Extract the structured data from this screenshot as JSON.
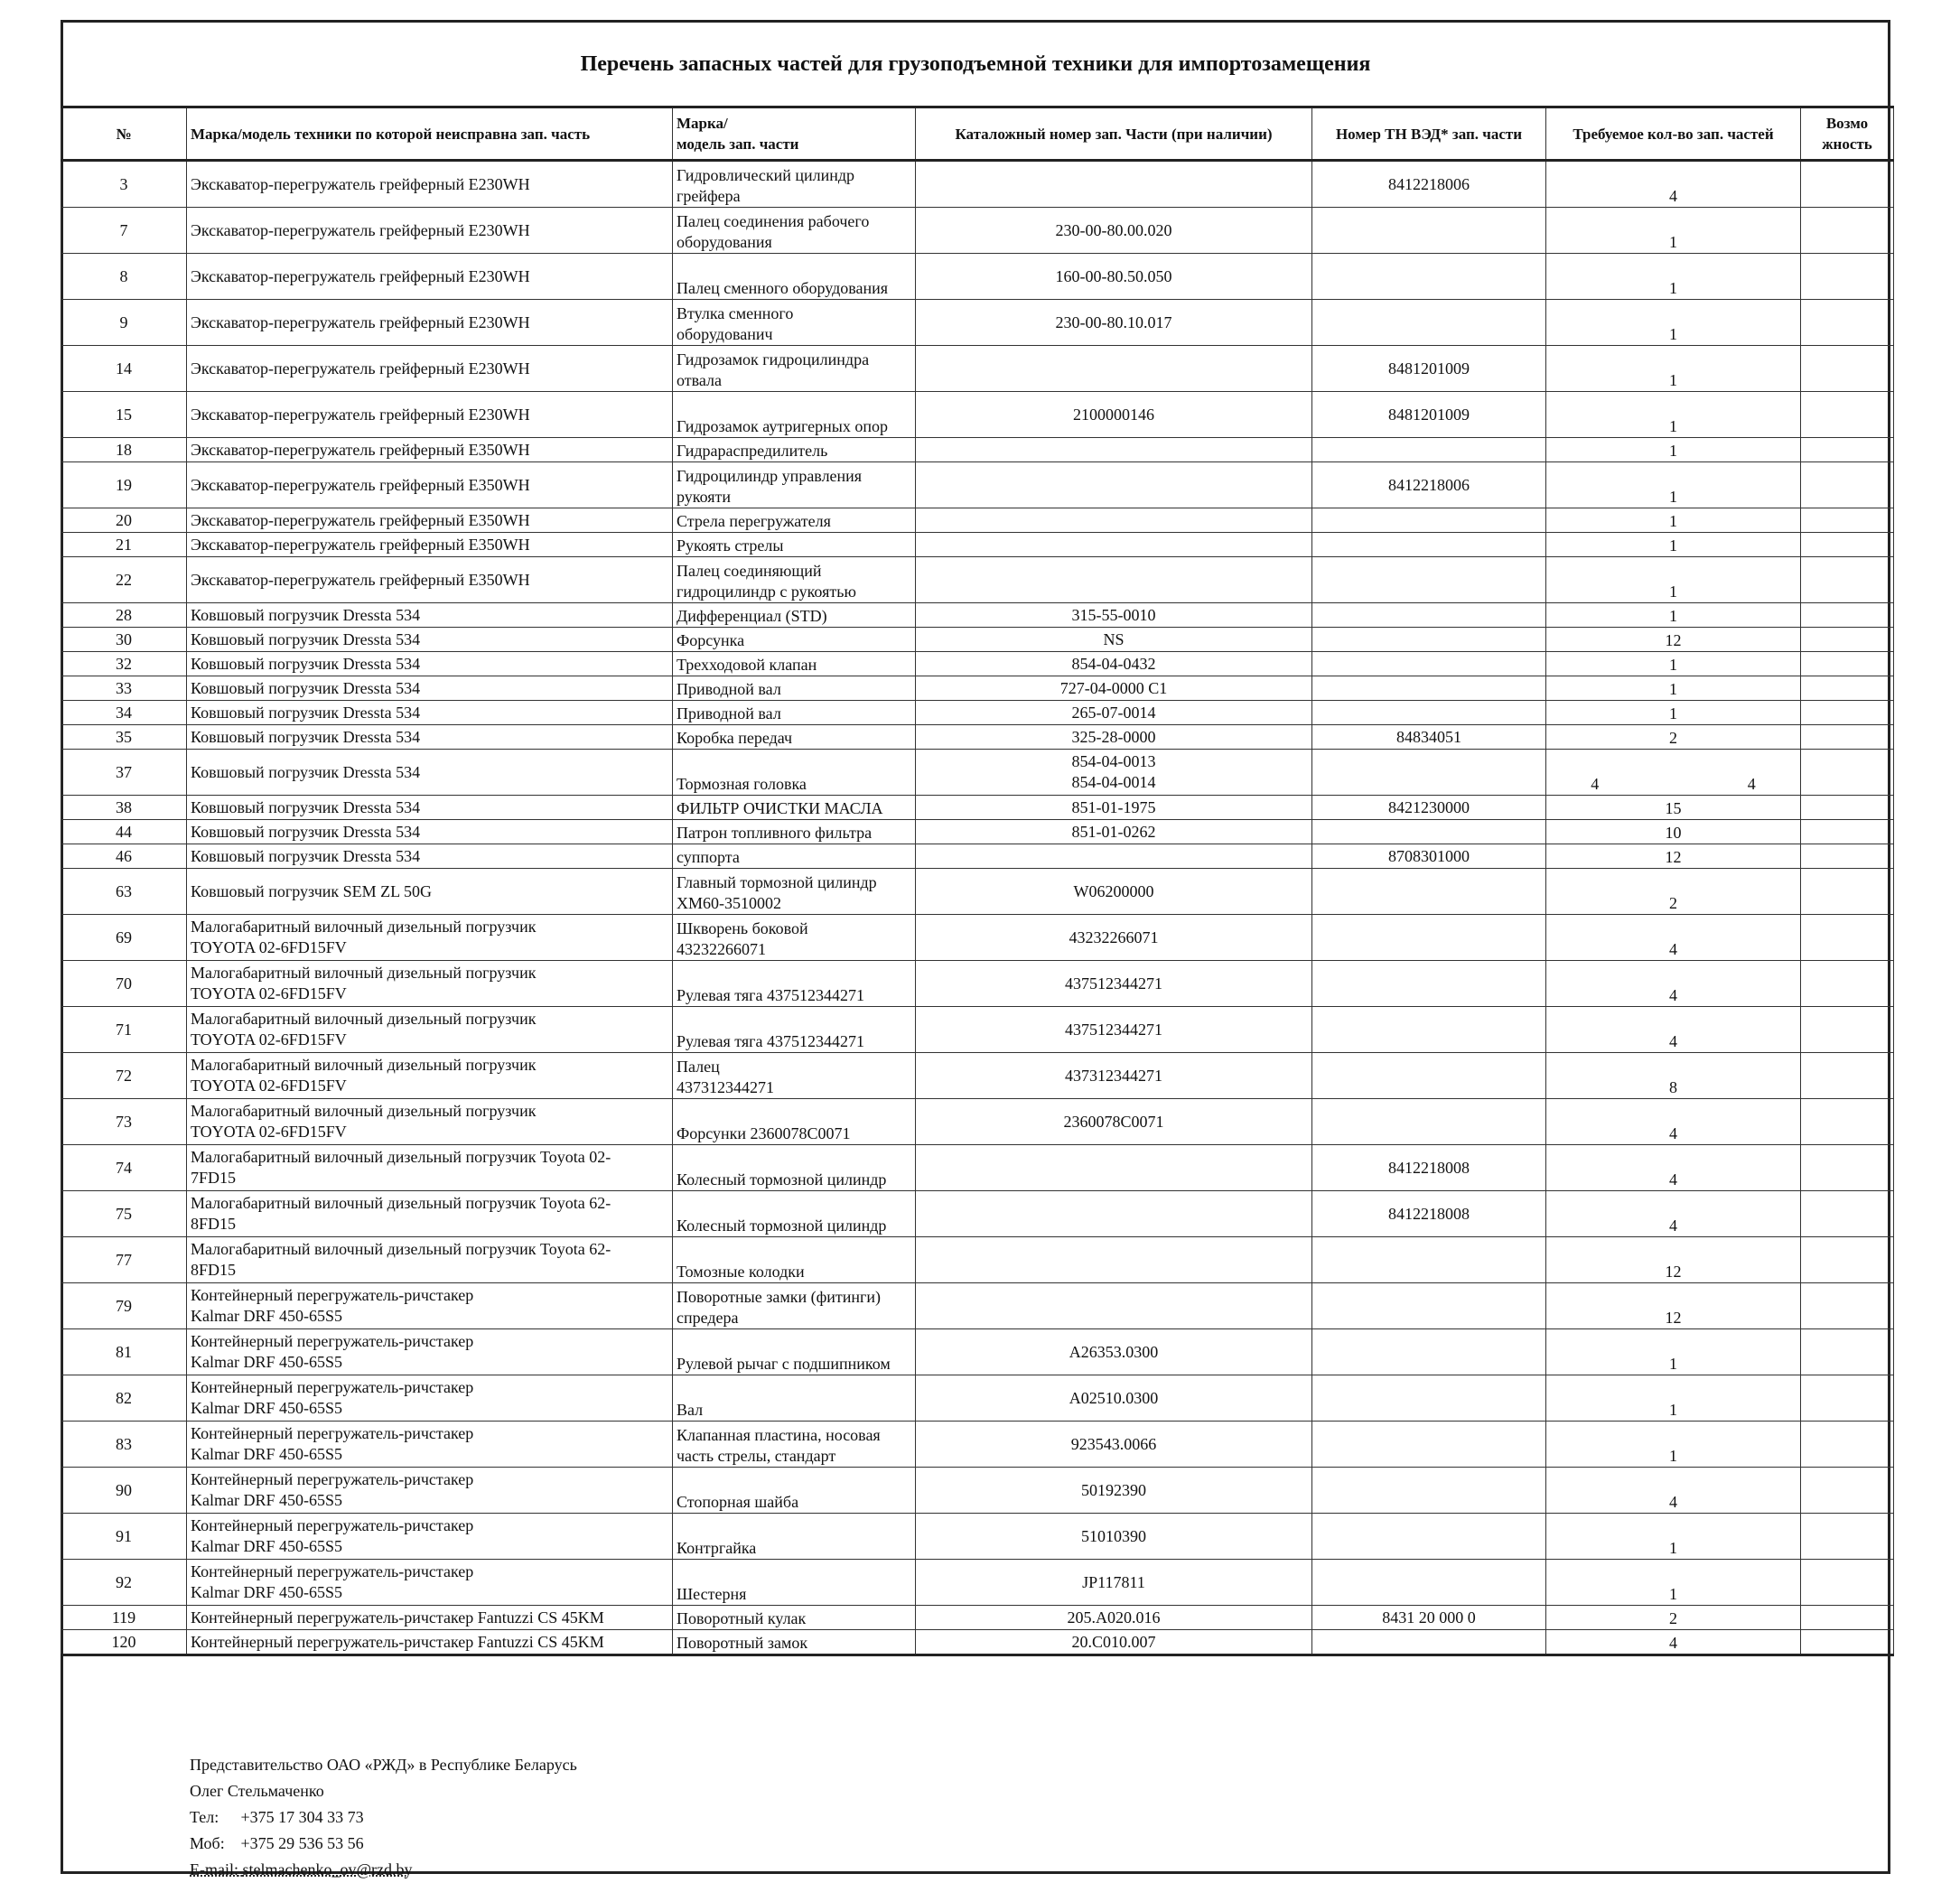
{
  "title": "Перечень запасных частей для грузоподъемной техники для импортозамещения",
  "columns": [
    "№",
    "Марка/модель техники по которой неисправна зап. часть",
    "Марка/\nмодель зап. части",
    "Каталожный номер зап. Части (при наличии)",
    "Номер ТН ВЭД* зап. части",
    "Требуемое кол-во зап. частей",
    "Возмо\nжность"
  ],
  "rows": [
    {
      "n": "3",
      "model": "Экскаватор-перегружатель грейферный E230WH",
      "part": "Гидровлический цилиндр\nгрейфера",
      "cat": "",
      "tn": "8412218006",
      "qty": "4"
    },
    {
      "n": "7",
      "model": "Экскаватор-перегружатель грейферный E230WH",
      "part": "Палец соединения рабочего\nоборудования",
      "cat": "230-00-80.00.020",
      "tn": "",
      "qty": "1"
    },
    {
      "n": "8",
      "model": "Экскаватор-перегружатель грейферный E230WH",
      "part": "Палец сменного оборудования",
      "cat": "160-00-80.50.050",
      "tn": "",
      "qty": "1"
    },
    {
      "n": "9",
      "model": "Экскаватор-перегружатель грейферный E230WH",
      "part": "Втулка сменного\nоборудованич",
      "cat": "230-00-80.10.017",
      "tn": "",
      "qty": "1"
    },
    {
      "n": "14",
      "model": "Экскаватор-перегружатель грейферный E230WH",
      "part": "Гидрозамок гидроцилиндра\nотвала",
      "cat": "",
      "tn": "8481201009",
      "qty": "1"
    },
    {
      "n": "15",
      "model": "Экскаватор-перегружатель грейферный E230WH",
      "part": "Гидрозамок аутригерных опор",
      "cat": "2100000146",
      "tn": "8481201009",
      "qty": "1"
    },
    {
      "n": "18",
      "model": "Экскаватор-перегружатель грейферный E350WH",
      "part": "Гидрараспредилитель",
      "cat": "",
      "tn": "",
      "qty": "1"
    },
    {
      "n": "19",
      "model": "Экскаватор-перегружатель грейферный E350WH",
      "part": "Гидроцилиндр управления\nрукояти",
      "cat": "",
      "tn": "8412218006",
      "qty": "1"
    },
    {
      "n": "20",
      "model": "Экскаватор-перегружатель грейферный E350WH",
      "part": "Стрела перегружателя",
      "cat": "",
      "tn": "",
      "qty": "1"
    },
    {
      "n": "21",
      "model": "Экскаватор-перегружатель грейферный E350WH",
      "part": "Рукоять стрелы",
      "cat": "",
      "tn": "",
      "qty": "1"
    },
    {
      "n": "22",
      "model": "Экскаватор-перегружатель грейферный E350WH",
      "part": "Палец соединяющий\nгидроцилиндр с рукоятью",
      "cat": "",
      "tn": "",
      "qty": "1"
    },
    {
      "n": "28",
      "model": "Ковшовый погрузчик Dressta 534",
      "part": "Дифференциал (STD)",
      "cat": "315-55-0010",
      "tn": "",
      "qty": "1"
    },
    {
      "n": "30",
      "model": "Ковшовый погрузчик Dressta 534",
      "part": " Форсунка",
      "cat": "NS",
      "tn": "",
      "qty": "12"
    },
    {
      "n": "32",
      "model": "Ковшовый погрузчик Dressta 534",
      "part": "Трехходовой клапан",
      "cat": "854-04-0432",
      "tn": "",
      "qty": "1"
    },
    {
      "n": "33",
      "model": "Ковшовый погрузчик Dressta 534",
      "part": "Приводной вал",
      "cat": "727-04-0000 C1",
      "tn": "",
      "qty": "1"
    },
    {
      "n": "34",
      "model": "Ковшовый погрузчик Dressta 534",
      "part": "Приводной вал",
      "cat": "265-07-0014",
      "tn": "",
      "qty": "1"
    },
    {
      "n": "35",
      "model": "Ковшовый погрузчик Dressta 534",
      "part": "Коробка передач",
      "cat": "325-28-0000",
      "tn": "84834051",
      "qty": "2"
    },
    {
      "n": "37",
      "model": "Ковшовый погрузчик Dressta 534",
      "part": "Тормозная головка",
      "cat": "854-04-0013\n854-04-0014",
      "tn": "",
      "qty": "4 4"
    },
    {
      "n": "38",
      "model": "Ковшовый погрузчик Dressta 534",
      "part": "ФИЛЬТР ОЧИСТКИ МАСЛА",
      "cat": "851-01-1975",
      "tn": "8421230000",
      "qty": "15"
    },
    {
      "n": "44",
      "model": "Ковшовый погрузчик Dressta 534",
      "part": "Патрон топливного фильтра",
      "cat": "851-01-0262",
      "tn": "",
      "qty": "10"
    },
    {
      "n": "46",
      "model": "Ковшовый погрузчик Dressta 534",
      "part": "суппорта",
      "cat": "",
      "tn": "8708301000",
      "qty": "12"
    },
    {
      "n": "63",
      "model": "Ковшовый погрузчик SEM ZL 50G",
      "part": "Главный тормозной цилиндр\nXM60-3510002",
      "cat": "W06200000",
      "tn": "",
      "qty": "2"
    },
    {
      "n": "69",
      "model": "Малогабаритный вилочный дизельный погрузчик\nTOYOTA 02-6FD15FV",
      "part": "Шкворень боковой\n43232266071",
      "cat": "43232266071",
      "tn": "",
      "qty": "4"
    },
    {
      "n": "70",
      "model": "Малогабаритный вилочный дизельный погрузчик\nTOYOTA 02-6FD15FV",
      "part": "Рулевая тяга 437512344271",
      "cat": "437512344271",
      "tn": "",
      "qty": "4"
    },
    {
      "n": "71",
      "model": "Малогабаритный вилочный дизельный погрузчик\nTOYOTA 02-6FD15FV",
      "part": "Рулевая тяга 437512344271",
      "cat": "437512344271",
      "tn": "",
      "qty": "4"
    },
    {
      "n": "72",
      "model": "Малогабаритный вилочный дизельный погрузчик\nTOYOTA 02-6FD15FV",
      "part": "Палец\n437312344271",
      "cat": "437312344271",
      "tn": "",
      "qty": "8"
    },
    {
      "n": "73",
      "model": "Малогабаритный вилочный дизельный погрузчик\nTOYOTA 02-6FD15FV",
      "part": "Форсунки 2360078C0071",
      "cat": "2360078C0071",
      "tn": "",
      "qty": "4"
    },
    {
      "n": "74",
      "model": "Малогабаритный вилочный дизельный погрузчик Toyota 02-\n7FD15",
      "part": "Колесный тормозной цилиндр",
      "cat": "",
      "tn": "8412218008",
      "qty": "4"
    },
    {
      "n": "75",
      "model": "Малогабаритный вилочный дизельный погрузчик  Toyota 62-\n8FD15",
      "part": "Колесный тормозной цилиндр",
      "cat": "",
      "tn": "8412218008",
      "qty": "4"
    },
    {
      "n": "77",
      "model": "Малогабаритный вилочный дизельный погрузчик  Toyota 62-\n8FD15",
      "part": "Томозные колодки",
      "cat": "",
      "tn": "",
      "qty": "12"
    },
    {
      "n": "79",
      "model": "Контейнерный перегружатель-ричстакер\nKalmar DRF 450-65S5",
      "part": "Поворотные замки (фитинги)\nспредера",
      "cat": "",
      "tn": "",
      "qty": "12"
    },
    {
      "n": "81",
      "model": "Контейнерный перегружатель-ричстакер\nKalmar DRF 450-65S5",
      "part": "Рулевой рычаг с подшипником",
      "cat": "A26353.0300",
      "tn": "",
      "qty": "1"
    },
    {
      "n": "82",
      "model": "Контейнерный перегружатель-ричстакер\nKalmar DRF 450-65S5",
      "part": "Вал",
      "cat": "A02510.0300",
      "tn": "",
      "qty": "1"
    },
    {
      "n": "83",
      "model": "Контейнерный перегружатель-ричстакер\nKalmar DRF 450-65S5",
      "part": "Клапанная пластина, носовая\nчасть стрелы, стандарт",
      "cat": "923543.0066",
      "tn": "",
      "qty": "1"
    },
    {
      "n": "90",
      "model": "Контейнерный перегружатель-ричстакер\nKalmar DRF 450-65S5",
      "part": "Стопорная шайба",
      "cat": "50192390",
      "tn": "",
      "qty": "4"
    },
    {
      "n": "91",
      "model": "Контейнерный перегружатель-ричстакер\nKalmar DRF 450-65S5",
      "part": "Контргайка",
      "cat": "51010390",
      "tn": "",
      "qty": "1"
    },
    {
      "n": "92",
      "model": "Контейнерный перегружатель-ричстакер\nKalmar DRF 450-65S5",
      "part": "Шестерня",
      "cat": "JP117811",
      "tn": "",
      "qty": "1"
    },
    {
      "n": "119",
      "model": "Контейнерный перегружатель-ричстакер Fantuzzi CS 45KM",
      "part": "Поворотный кулак",
      "cat": "205.A020.016",
      "tn": "8431 20 000 0",
      "qty": "2"
    },
    {
      "n": "120",
      "model": "Контейнерный перегружатель-ричстакер Fantuzzi CS 45KM",
      "part": "Поворотный замок",
      "cat": "20.C010.007",
      "tn": "",
      "qty": "4"
    }
  ],
  "footer": {
    "org": "Представительство ОАО «РЖД» в Республике Беларусь",
    "name": "Олег Стельмаченко",
    "tel_label": "Тел:",
    "tel": "+375 17 304 33 73",
    "mob_label": "Моб:",
    "mob": "+375 29 536 53 56",
    "email_label": "E-mail:",
    "email": "stelmachenko_ov@rzd.by"
  }
}
